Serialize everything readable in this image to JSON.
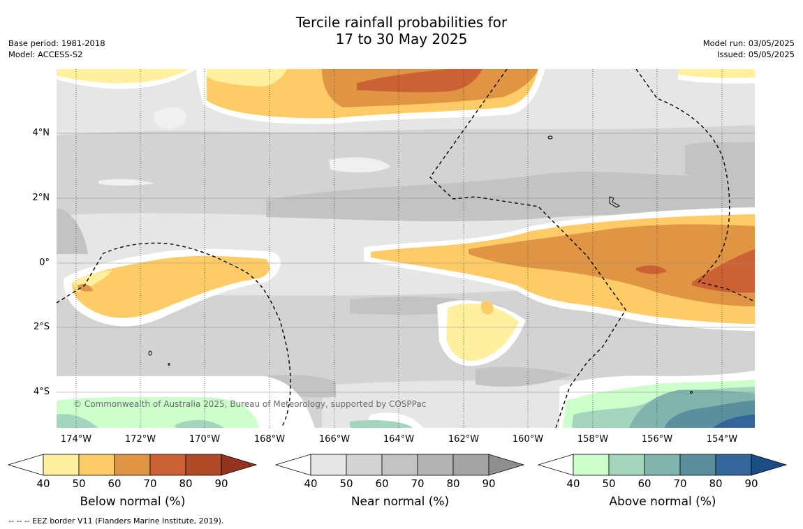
{
  "title": {
    "line1": "Tercile rainfall probabilities for",
    "line2": "17 to 30 May 2025"
  },
  "meta_left": {
    "base_period": "Base period: 1981-2018",
    "model": "Model: ACCESS-S2"
  },
  "meta_right": {
    "model_run": "Model run: 03/05/2025",
    "issued": "Issued: 05/05/2025"
  },
  "map": {
    "lat_labels": [
      "4°N",
      "2°N",
      "0°",
      "2°S",
      "4°S"
    ],
    "lon_labels": [
      "174°W",
      "172°W",
      "170°W",
      "168°W",
      "166°W",
      "164°W",
      "162°W",
      "160°W",
      "158°W",
      "156°W",
      "154°W"
    ],
    "copyright": "© Commonwealth of Australia 2025, Bureau of Meteorology, supported by COSPPac"
  },
  "colorbars": [
    {
      "name": "below-normal",
      "title": "Below normal (%)",
      "ticks": [
        "40",
        "50",
        "60",
        "70",
        "80",
        "90"
      ],
      "colors": [
        "#fff0a0",
        "#fecc66",
        "#e09545",
        "#cc6233",
        "#b04b28",
        "#933320"
      ]
    },
    {
      "name": "near-normal",
      "title": "Near normal (%)",
      "ticks": [
        "40",
        "50",
        "60",
        "70",
        "80",
        "90"
      ],
      "colors": [
        "#e6e6e6",
        "#d3d3d3",
        "#c3c3c3",
        "#b4b4b4",
        "#a5a5a5",
        "#8e8e8e"
      ]
    },
    {
      "name": "above-normal",
      "title": "Above normal (%)",
      "ticks": [
        "40",
        "50",
        "60",
        "70",
        "80",
        "90"
      ],
      "colors": [
        "#ccffcc",
        "#a3d6bd",
        "#80b4ac",
        "#5a909e",
        "#33669a",
        "#1a4d85"
      ]
    }
  ],
  "footer": "--  --  -- EEZ border V11 (Flanders Marine Institute, 2019)."
}
